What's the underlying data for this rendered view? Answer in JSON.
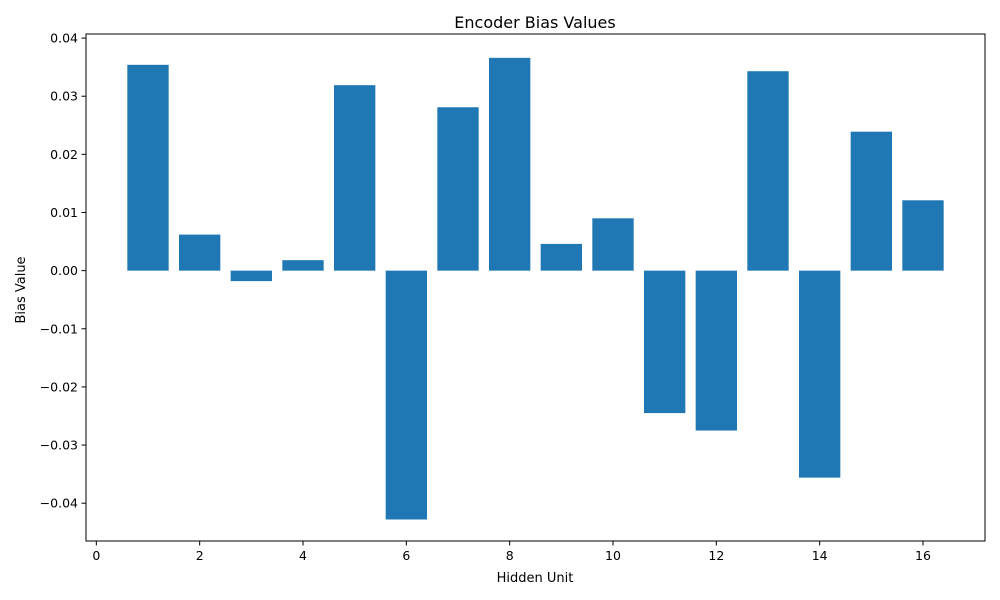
{
  "chart_data": {
    "type": "bar",
    "title": "Encoder Bias Values",
    "xlabel": "Hidden Unit",
    "ylabel": "Bias Value",
    "x": [
      1,
      2,
      3,
      4,
      5,
      6,
      7,
      8,
      9,
      10,
      11,
      12,
      13,
      14,
      15,
      16
    ],
    "values": [
      0.0354,
      0.0062,
      -0.0018,
      0.0018,
      0.0319,
      -0.0428,
      0.0281,
      0.0366,
      0.0046,
      0.009,
      -0.0245,
      -0.0275,
      0.0343,
      -0.0356,
      0.0239,
      0.0121
    ],
    "xlim": [
      -0.2,
      17.2
    ],
    "ylim": [
      -0.0465,
      0.0407
    ],
    "xticks": [
      0,
      2,
      4,
      6,
      8,
      10,
      12,
      14,
      16
    ],
    "xtick_labels": [
      "0",
      "2",
      "4",
      "6",
      "8",
      "10",
      "12",
      "14",
      "16"
    ],
    "yticks": [
      -0.04,
      -0.03,
      -0.02,
      -0.01,
      0.0,
      0.01,
      0.02,
      0.03,
      0.04
    ],
    "ytick_labels": [
      "−0.04",
      "−0.03",
      "−0.02",
      "−0.01",
      "0.00",
      "0.01",
      "0.02",
      "0.03",
      "0.04"
    ],
    "bar_color": "#1f77b4",
    "grid": false,
    "legend": "none"
  }
}
